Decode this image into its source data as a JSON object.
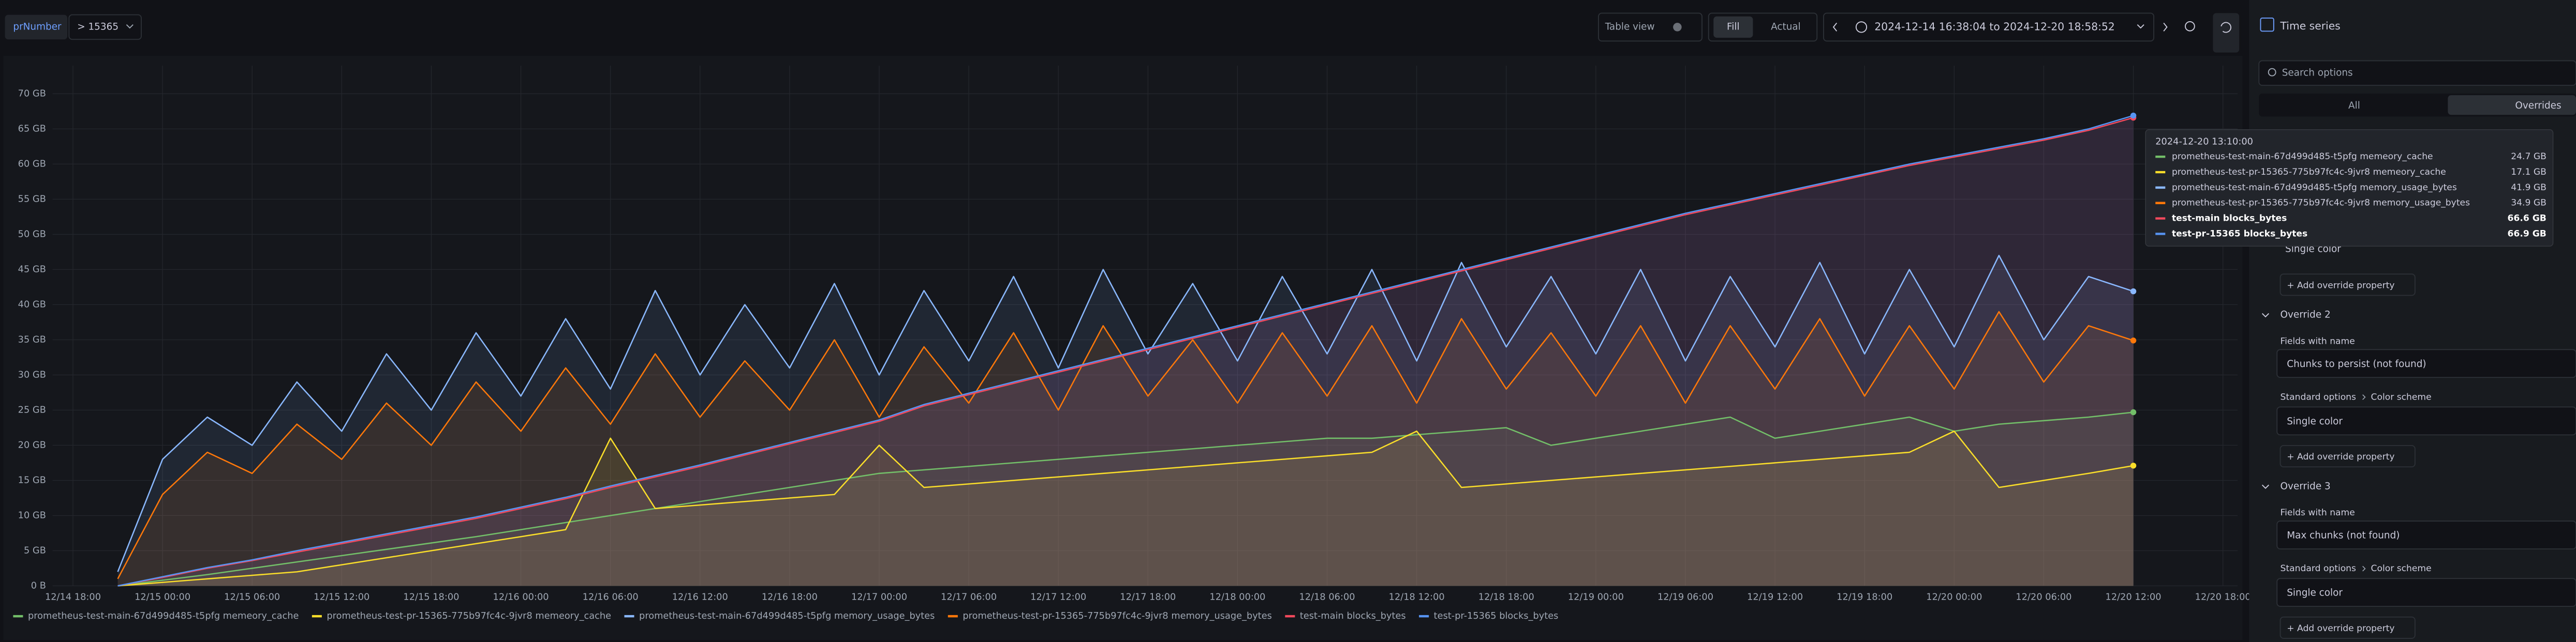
{
  "toolbar": {
    "variable_label": "prNumber",
    "variable_value": "> 15365",
    "table_view": "Table view",
    "fill": "Fill",
    "actual": "Actual",
    "range_separator": "to"
  },
  "chart_data": {
    "type": "line",
    "fill_area": true,
    "legend": "bottom",
    "grid": true,
    "xlim": [
      "2024-12-14 16:38:04",
      "2024-12-20 18:58:52"
    ],
    "xticks": [
      "12/14 18:00",
      "12/15 00:00",
      "12/15 06:00",
      "12/15 12:00",
      "12/15 18:00",
      "12/16 00:00",
      "12/16 06:00",
      "12/16 12:00",
      "12/16 18:00",
      "12/17 00:00",
      "12/17 06:00",
      "12/17 12:00",
      "12/17 18:00",
      "12/18 00:00",
      "12/18 06:00",
      "12/18 12:00",
      "12/18 18:00",
      "12/19 00:00",
      "12/19 06:00",
      "12/19 12:00",
      "12/19 18:00",
      "12/20 00:00",
      "12/20 06:00",
      "12/20 12:00",
      "12/20 18:00"
    ],
    "ylim": [
      0,
      74
    ],
    "yticks": [
      {
        "value": 0,
        "label": "0 B"
      },
      {
        "value": 5,
        "label": "5 GB"
      },
      {
        "value": 10,
        "label": "10 GB"
      },
      {
        "value": 15,
        "label": "15 GB"
      },
      {
        "value": 20,
        "label": "20 GB"
      },
      {
        "value": 25,
        "label": "25 GB"
      },
      {
        "value": 30,
        "label": "30 GB"
      },
      {
        "value": 35,
        "label": "35 GB"
      },
      {
        "value": 40,
        "label": "40 GB"
      },
      {
        "value": 45,
        "label": "45 GB"
      },
      {
        "value": 50,
        "label": "50 GB"
      },
      {
        "value": 55,
        "label": "55 GB"
      },
      {
        "value": 60,
        "label": "60 GB"
      },
      {
        "value": 65,
        "label": "65 GB"
      },
      {
        "value": 70,
        "label": "70 GB"
      }
    ],
    "x": [
      "12/14 21:00",
      "12/15 00:00",
      "12/15 03:00",
      "12/15 06:00",
      "12/15 09:00",
      "12/15 12:00",
      "12/15 15:00",
      "12/15 18:00",
      "12/15 21:00",
      "12/16 00:00",
      "12/16 03:00",
      "12/16 06:00",
      "12/16 09:00",
      "12/16 12:00",
      "12/16 15:00",
      "12/16 18:00",
      "12/16 21:00",
      "12/17 00:00",
      "12/17 03:00",
      "12/17 06:00",
      "12/17 09:00",
      "12/17 12:00",
      "12/17 15:00",
      "12/17 18:00",
      "12/17 21:00",
      "12/18 00:00",
      "12/18 03:00",
      "12/18 06:00",
      "12/18 09:00",
      "12/18 12:00",
      "12/18 15:00",
      "12/18 18:00",
      "12/18 21:00",
      "12/19 00:00",
      "12/19 03:00",
      "12/19 06:00",
      "12/19 09:00",
      "12/19 12:00",
      "12/19 15:00",
      "12/19 18:00",
      "12/19 21:00",
      "12/20 00:00",
      "12/20 03:00",
      "12/20 06:00",
      "12/20 09:00",
      "12/20 12:00"
    ],
    "series": [
      {
        "name": "prometheus-test-main-67d499d485-t5pfg memeory_cache",
        "color": "#73bf69",
        "values": [
          0,
          0.8,
          1.6,
          2.5,
          3.4,
          4.3,
          5.2,
          6.1,
          7.0,
          8.0,
          9.0,
          10.0,
          11.0,
          12.0,
          13.0,
          14.0,
          15.0,
          16.0,
          16.5,
          17.0,
          17.5,
          18.0,
          18.5,
          19.0,
          19.5,
          20.0,
          20.5,
          21.0,
          21.0,
          21.5,
          22.0,
          22.5,
          20.0,
          21.0,
          22.0,
          23.0,
          24.0,
          21.0,
          22.0,
          23.0,
          24.0,
          22.0,
          23.0,
          23.5,
          24.0,
          24.7
        ]
      },
      {
        "name": "prometheus-test-pr-15365-775b97fc4c-9jvr8 memeory_cache",
        "color": "#fade2a",
        "values": [
          0,
          0.5,
          1,
          1.5,
          2,
          3,
          4,
          5,
          6,
          7,
          8,
          21,
          11,
          11.5,
          12,
          12.5,
          13,
          20,
          14,
          14.5,
          15,
          15.5,
          16,
          16.5,
          17,
          17.5,
          18,
          18.5,
          19,
          22,
          14,
          14.5,
          15,
          15.5,
          16,
          16.5,
          17,
          17.5,
          18,
          18.5,
          19,
          22,
          14,
          15,
          16,
          17.1
        ]
      },
      {
        "name": "prometheus-test-main-67d499d485-t5pfg memory_usage_bytes",
        "color": "#8ab8ff",
        "values": [
          2,
          18,
          24,
          20,
          29,
          22,
          33,
          25,
          36,
          27,
          38,
          28,
          42,
          30,
          40,
          31,
          43,
          30,
          42,
          32,
          44,
          31,
          45,
          33,
          43,
          32,
          44,
          33,
          45,
          32,
          46,
          34,
          44,
          33,
          45,
          32,
          44,
          34,
          46,
          33,
          45,
          34,
          47,
          35,
          44,
          41.9
        ]
      },
      {
        "name": "prometheus-test-pr-15365-775b97fc4c-9jvr8 memory_usage_bytes",
        "color": "#ff780a",
        "values": [
          1,
          13,
          19,
          16,
          23,
          18,
          26,
          20,
          29,
          22,
          31,
          23,
          33,
          24,
          32,
          25,
          35,
          24,
          34,
          26,
          36,
          25,
          37,
          27,
          35,
          26,
          36,
          27,
          37,
          26,
          38,
          28,
          36,
          27,
          37,
          26,
          37,
          28,
          38,
          27,
          37,
          28,
          39,
          29,
          37,
          34.9
        ]
      },
      {
        "name": "test-main blocks_bytes",
        "color": "#f2495c",
        "values": [
          0,
          1.2,
          2.5,
          3.6,
          4.8,
          6.0,
          7.2,
          8.4,
          9.6,
          11.0,
          12.4,
          14.0,
          15.5,
          17.0,
          18.6,
          20.2,
          21.8,
          23.4,
          25.6,
          27.2,
          28.8,
          30.4,
          32.0,
          33.6,
          35.2,
          36.8,
          38.4,
          40.0,
          41.6,
          43.2,
          44.8,
          46.4,
          48.0,
          49.6,
          51.2,
          52.8,
          54.2,
          55.6,
          57.0,
          58.4,
          59.8,
          61.0,
          62.2,
          63.4,
          64.8,
          66.6
        ]
      },
      {
        "name": "test-pr-15365 blocks_bytes",
        "color": "#5794f2",
        "values": [
          0,
          1.3,
          2.6,
          3.7,
          5.0,
          6.2,
          7.4,
          8.6,
          9.8,
          11.2,
          12.6,
          14.2,
          15.7,
          17.2,
          18.8,
          20.4,
          22.0,
          23.6,
          25.8,
          27.4,
          29.0,
          30.6,
          32.2,
          33.8,
          35.4,
          37.0,
          38.6,
          40.2,
          41.8,
          43.4,
          45.0,
          46.6,
          48.2,
          49.8,
          51.4,
          53.0,
          54.4,
          55.8,
          57.2,
          58.6,
          60.0,
          61.2,
          62.4,
          63.6,
          65.0,
          66.9
        ]
      }
    ]
  },
  "tooltip": {
    "time": "2024-12-20 13:10:00",
    "values": [
      "24.7 GB",
      "17.1 GB",
      "41.9 GB",
      "34.9 GB",
      "66.6 GB",
      "66.9 GB"
    ]
  },
  "options_pane": {
    "title": "Time series",
    "search_placeholder": "Search options",
    "tabs": [
      "All",
      "Overrides"
    ],
    "override_1": {
      "color_scheme_value": "Single color",
      "add_property": "+ Add override property"
    },
    "overrides": [
      {
        "title": "Override 2",
        "matcher": "Fields with name",
        "field": "Chunks to persist (not found)",
        "property_group": "Standard options",
        "property": "Color scheme",
        "value": "Single color",
        "add_property": "+ Add override property"
      },
      {
        "title": "Override 3",
        "matcher": "Fields with name",
        "field": "Max chunks (not found)",
        "property_group": "Standard options",
        "property": "Color scheme",
        "value": "Single color",
        "add_property": "+ Add override property"
      }
    ]
  }
}
